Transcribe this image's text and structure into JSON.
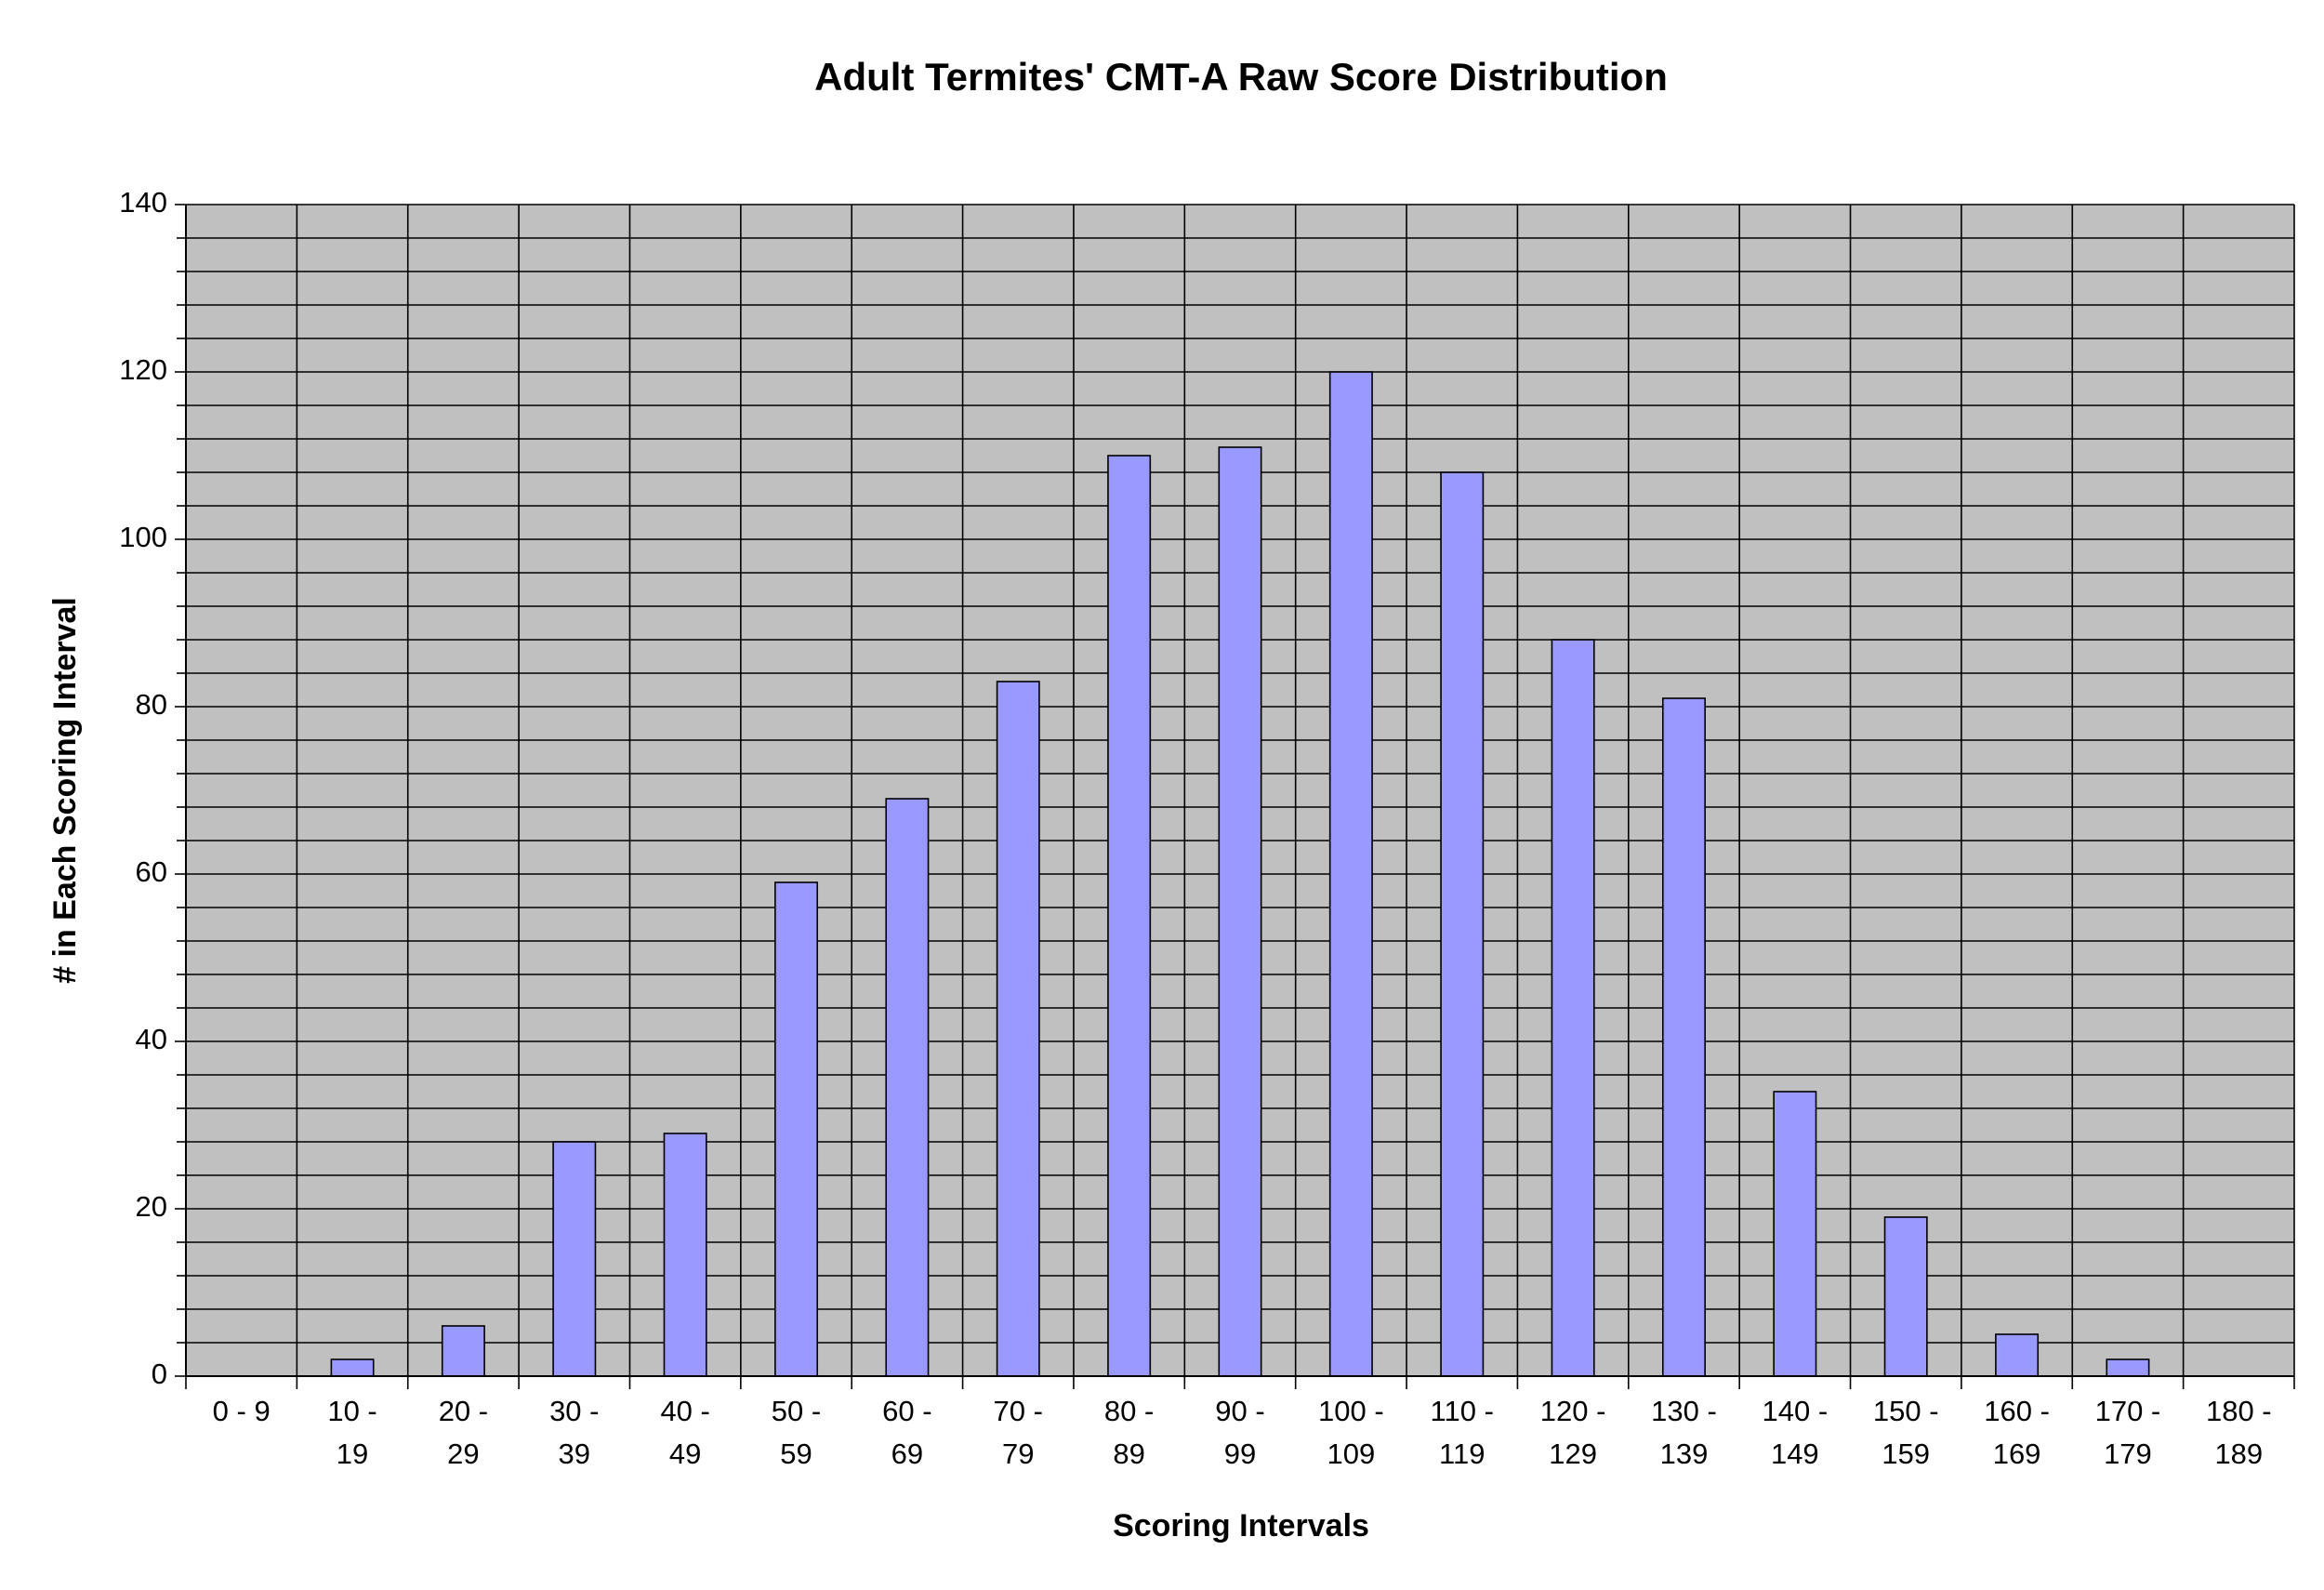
{
  "chart_data": {
    "type": "bar",
    "title": "Adult Termites' CMT-A Raw Score Distribution",
    "x_label": "Scoring Intervals",
    "y_label": "# in Each Scoring Interval",
    "categories": [
      "0 - 9",
      "10 - 19",
      "20 - 29",
      "30 - 39",
      "40 - 49",
      "50 - 59",
      "60 - 69",
      "70 - 79",
      "80 - 89",
      "90 - 99",
      "100 - 109",
      "110 - 119",
      "120 - 129",
      "130 - 139",
      "140 - 149",
      "150 - 159",
      "160 - 169",
      "170 - 179",
      "180 - 189"
    ],
    "values": [
      0,
      2,
      6,
      28,
      29,
      59,
      69,
      83,
      110,
      111,
      120,
      108,
      88,
      81,
      34,
      19,
      5,
      2,
      0
    ],
    "color": "#9999ff",
    "plot_background": "#c0c0c0",
    "ylim": [
      0,
      140
    ],
    "yticks": [
      0,
      20,
      40,
      60,
      80,
      100,
      120,
      140
    ],
    "minor_yticks": [
      4,
      8,
      12,
      16,
      24,
      28,
      32,
      36,
      44,
      48,
      52,
      56,
      64,
      68,
      72,
      76,
      84,
      88,
      92,
      96,
      104,
      108,
      112,
      116,
      124,
      128,
      132,
      136
    ],
    "grid": true
  }
}
